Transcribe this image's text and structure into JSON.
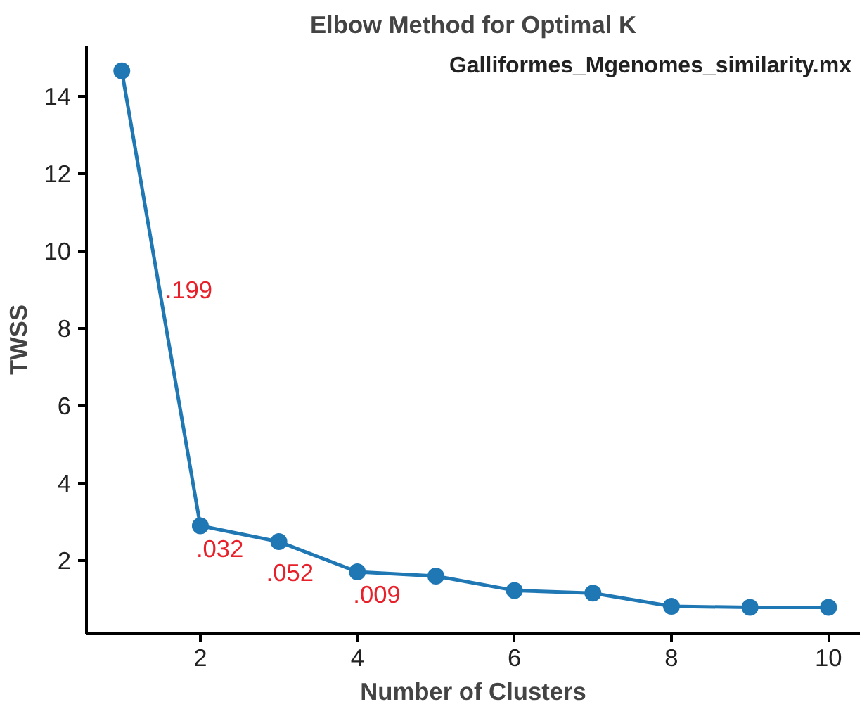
{
  "chart_data": {
    "type": "line",
    "title": "Elbow Method for Optimal K",
    "subtitle": "Galliformes_Mgenomes_similarity.mx",
    "xlabel": "Number of Clusters",
    "ylabel": "TWSS",
    "x": [
      1,
      2,
      3,
      4,
      5,
      6,
      7,
      8,
      9,
      10
    ],
    "series": [
      {
        "color": "#1f77b4",
        "values": [
          14.65,
          2.89,
          2.48,
          1.7,
          1.59,
          1.22,
          1.15,
          0.81,
          0.78,
          0.78
        ]
      }
    ],
    "xlim": [
      0.55,
      10.4
    ],
    "ylim": [
      0.1,
      15.3
    ],
    "xticks": [
      2,
      4,
      6,
      8,
      10
    ],
    "yticks": [
      2,
      4,
      6,
      8,
      10,
      12,
      14
    ],
    "annotations": [
      {
        "text": ".199",
        "x": 1.55,
        "y": 9.0
      },
      ".032",
      ".052",
      ".009"
    ],
    "marker": "circle",
    "line_style": "solid",
    "grid": false
  }
}
